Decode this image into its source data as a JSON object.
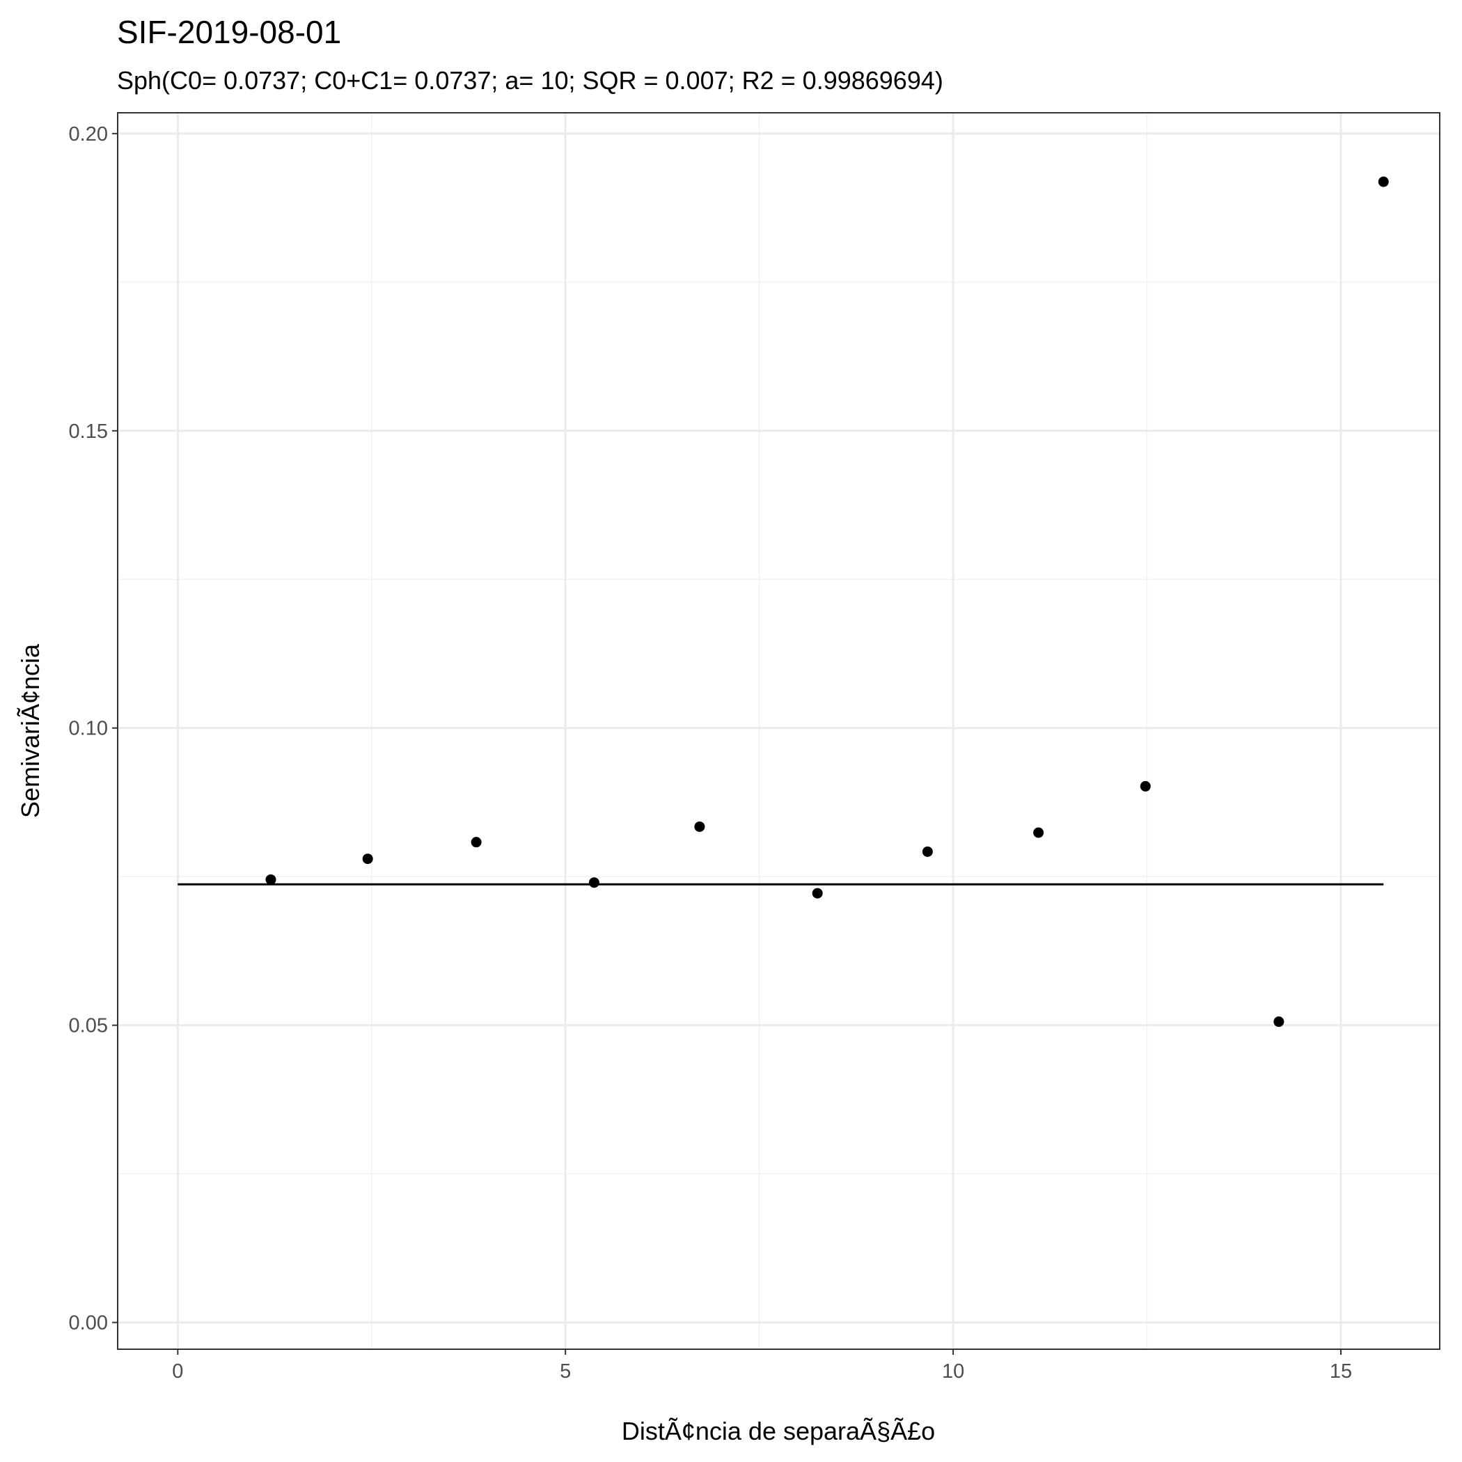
{
  "chart_data": {
    "type": "scatter",
    "title": "SIF-2019-08-01",
    "subtitle": "Sph(C0= 0.0737; C0+C1= 0.0737; a= 10; SQR = 0.007; R2 = 0.99869694)",
    "xlabel": "DistÃ¢ncia de separaÃ§Ã£o",
    "ylabel": "SemivariÃ¢ncia",
    "xlim": [
      -0.775,
      16.275
    ],
    "ylim": [
      -0.0045,
      0.2035
    ],
    "x_ticks": [
      0,
      5,
      10,
      15
    ],
    "x_tick_labels": [
      "0",
      "5",
      "10",
      "15"
    ],
    "y_ticks": [
      0.0,
      0.05,
      0.1,
      0.15,
      0.2
    ],
    "y_tick_labels": [
      "0.00",
      "0.05",
      "0.10",
      "0.15",
      "0.20"
    ],
    "grid": true,
    "points": [
      {
        "x": 1.2,
        "y": 0.0745
      },
      {
        "x": 2.45,
        "y": 0.078
      },
      {
        "x": 3.85,
        "y": 0.0808
      },
      {
        "x": 5.37,
        "y": 0.074
      },
      {
        "x": 6.73,
        "y": 0.0834
      },
      {
        "x": 8.25,
        "y": 0.0722
      },
      {
        "x": 9.67,
        "y": 0.0792
      },
      {
        "x": 11.1,
        "y": 0.0824
      },
      {
        "x": 12.48,
        "y": 0.0902
      },
      {
        "x": 14.2,
        "y": 0.0506
      },
      {
        "x": 15.55,
        "y": 0.1919
      }
    ],
    "model_line": {
      "x": [
        0,
        15.55
      ],
      "y": [
        0.0737,
        0.0737
      ]
    }
  }
}
